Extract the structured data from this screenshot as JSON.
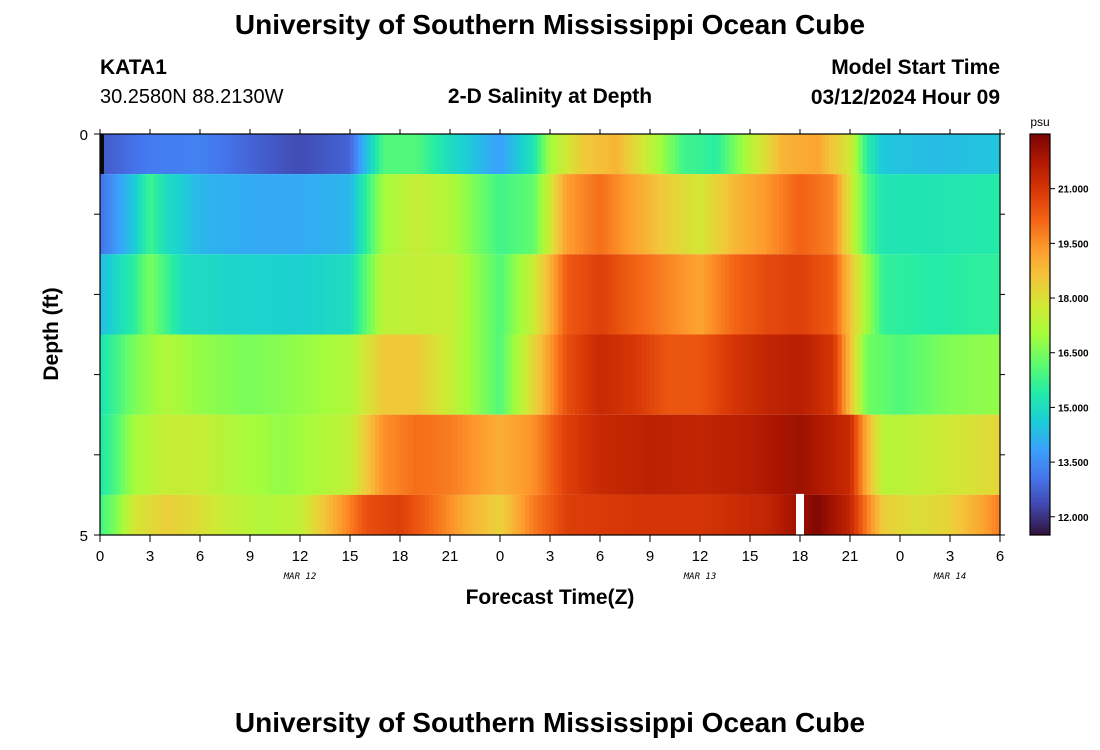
{
  "header": {
    "title_top": "University of Southern Mississippi Ocean Cube",
    "title_bottom": "University of Southern Mississippi Ocean Cube",
    "station_id": "KATA1",
    "station_coords": "30.2580N  88.2130W",
    "chart_title": "2-D Salinity at Depth",
    "model_label": "Model Start Time",
    "model_time": "03/12/2024 Hour 09"
  },
  "chart_data": {
    "type": "heatmap",
    "title": "2-D Salinity at Depth",
    "xlabel": "Forecast Time(Z)",
    "ylabel": "Depth (ft)",
    "y_tick_labels": [
      "0",
      "5"
    ],
    "ylim": [
      0,
      5
    ],
    "x_hours_range": [
      0,
      54
    ],
    "x_tick_labels": [
      "0",
      "3",
      "6",
      "9",
      "12",
      "15",
      "18",
      "21",
      "0",
      "3",
      "6",
      "9",
      "12",
      "15",
      "18",
      "21",
      "0",
      "3",
      "6"
    ],
    "date_labels": [
      {
        "label": "MAR 12",
        "hour": 12
      },
      {
        "label": "MAR 13",
        "hour": 36
      },
      {
        "label": "MAR 14",
        "hour": 51
      }
    ],
    "colorbar": {
      "unit": "psu",
      "range": [
        11.5,
        22.5
      ],
      "tick_values": [
        12.0,
        13.5,
        15.0,
        16.5,
        18.0,
        19.5,
        21.0
      ],
      "tick_labels": [
        "12.000",
        "13.500",
        "15.000",
        "16.500",
        "18.000",
        "19.500",
        "21.000"
      ]
    },
    "depth_bands": [
      {
        "depth_range": [
          0,
          0.5
        ],
        "keyframes": [
          [
            0,
            12.6
          ],
          [
            3,
            13.2
          ],
          [
            6,
            13.3
          ],
          [
            9,
            12.8
          ],
          [
            12,
            12.4
          ],
          [
            15,
            12.8
          ],
          [
            17,
            16.0
          ],
          [
            19,
            16.0
          ],
          [
            21,
            15.0
          ],
          [
            24,
            13.8
          ],
          [
            26,
            15.2
          ],
          [
            27,
            17.0
          ],
          [
            29,
            18.5
          ],
          [
            31,
            18.9
          ],
          [
            33,
            17.5
          ],
          [
            35,
            15.8
          ],
          [
            37,
            15.5
          ],
          [
            39,
            17.3
          ],
          [
            41,
            18.9
          ],
          [
            43,
            19.2
          ],
          [
            45,
            17.8
          ],
          [
            46,
            15.5
          ],
          [
            47,
            14.5
          ],
          [
            50,
            14.3
          ],
          [
            54,
            14.5
          ]
        ]
      },
      {
        "depth_range": [
          0.5,
          1.5
        ],
        "keyframes": [
          [
            0,
            13.0
          ],
          [
            2,
            14.5
          ],
          [
            3,
            15.8
          ],
          [
            4,
            15.0
          ],
          [
            6,
            14.2
          ],
          [
            9,
            14.0
          ],
          [
            12,
            14.0
          ],
          [
            15,
            14.2
          ],
          [
            17,
            17.0
          ],
          [
            19,
            17.6
          ],
          [
            21,
            17.2
          ],
          [
            24,
            15.8
          ],
          [
            26,
            16.2
          ],
          [
            28,
            19.3
          ],
          [
            30,
            20.0
          ],
          [
            32,
            19.2
          ],
          [
            34,
            18.4
          ],
          [
            36,
            17.8
          ],
          [
            38,
            18.8
          ],
          [
            40,
            19.4
          ],
          [
            42,
            20.2
          ],
          [
            44,
            19.7
          ],
          [
            46,
            16.0
          ],
          [
            47,
            15.2
          ],
          [
            50,
            15.2
          ],
          [
            54,
            15.4
          ]
        ]
      },
      {
        "depth_range": [
          1.5,
          2.5
        ],
        "keyframes": [
          [
            0,
            14.3
          ],
          [
            2,
            15.5
          ],
          [
            3,
            16.5
          ],
          [
            5,
            15.0
          ],
          [
            8,
            14.8
          ],
          [
            12,
            14.7
          ],
          [
            15,
            15.0
          ],
          [
            17,
            17.4
          ],
          [
            21,
            17.6
          ],
          [
            24,
            16.0
          ],
          [
            26,
            17.6
          ],
          [
            28,
            20.3
          ],
          [
            30,
            20.8
          ],
          [
            32,
            20.2
          ],
          [
            36,
            19.2
          ],
          [
            38,
            20.1
          ],
          [
            40,
            20.6
          ],
          [
            42,
            20.8
          ],
          [
            44,
            20.3
          ],
          [
            46,
            17.0
          ],
          [
            47,
            15.6
          ],
          [
            50,
            15.4
          ],
          [
            54,
            15.6
          ]
        ]
      },
      {
        "depth_range": [
          2.5,
          3.5
        ],
        "keyframes": [
          [
            0,
            15.2
          ],
          [
            1,
            15.8
          ],
          [
            2,
            16.5
          ],
          [
            4,
            17.2
          ],
          [
            6,
            16.8
          ],
          [
            9,
            16.5
          ],
          [
            12,
            16.8
          ],
          [
            15,
            17.2
          ],
          [
            17,
            18.5
          ],
          [
            19,
            18.5
          ],
          [
            21,
            17.6
          ],
          [
            24,
            16.0
          ],
          [
            26,
            18.2
          ],
          [
            28,
            20.5
          ],
          [
            30,
            21.3
          ],
          [
            32,
            21.0
          ],
          [
            34,
            20.4
          ],
          [
            36,
            20.4
          ],
          [
            38,
            21.0
          ],
          [
            40,
            21.4
          ],
          [
            42,
            21.6
          ],
          [
            44,
            21.0
          ],
          [
            46,
            16.4
          ],
          [
            48,
            16.0
          ],
          [
            51,
            16.6
          ],
          [
            54,
            16.8
          ]
        ]
      },
      {
        "depth_range": [
          3.5,
          4.5
        ],
        "keyframes": [
          [
            0,
            15.3
          ],
          [
            1,
            16.0
          ],
          [
            2,
            17.0
          ],
          [
            4,
            17.6
          ],
          [
            6,
            17.6
          ],
          [
            8,
            17.2
          ],
          [
            11,
            16.8
          ],
          [
            15,
            17.5
          ],
          [
            17,
            19.5
          ],
          [
            19,
            20.0
          ],
          [
            21,
            19.8
          ],
          [
            24,
            19.0
          ],
          [
            26,
            19.5
          ],
          [
            28,
            20.8
          ],
          [
            30,
            21.3
          ],
          [
            33,
            21.5
          ],
          [
            36,
            21.4
          ],
          [
            39,
            21.6
          ],
          [
            42,
            22.0
          ],
          [
            45,
            21.3
          ],
          [
            46,
            19.0
          ],
          [
            47,
            17.3
          ],
          [
            50,
            17.6
          ],
          [
            54,
            18.2
          ]
        ]
      },
      {
        "depth_range": [
          4.5,
          5.0
        ],
        "keyframes": [
          [
            0,
            15.8
          ],
          [
            1,
            16.6
          ],
          [
            2,
            17.8
          ],
          [
            4,
            18.4
          ],
          [
            6,
            18.0
          ],
          [
            8,
            17.5
          ],
          [
            10,
            17.2
          ],
          [
            12,
            17.5
          ],
          [
            14,
            19.0
          ],
          [
            16,
            20.5
          ],
          [
            18,
            20.8
          ],
          [
            20,
            20.0
          ],
          [
            22,
            19.0
          ],
          [
            24,
            18.3
          ],
          [
            26,
            19.8
          ],
          [
            28,
            20.8
          ],
          [
            32,
            21.0
          ],
          [
            36,
            21.0
          ],
          [
            40,
            21.4
          ],
          [
            42,
            22.0
          ],
          [
            43,
            22.4
          ],
          [
            45,
            21.4
          ],
          [
            46,
            19.8
          ],
          [
            47,
            18.4
          ],
          [
            49,
            18.0
          ],
          [
            51,
            18.3
          ],
          [
            53,
            19.2
          ],
          [
            54,
            19.8
          ]
        ]
      }
    ],
    "missing_data": [
      {
        "hour": 42,
        "depth_range": [
          4.5,
          5.0
        ]
      }
    ]
  },
  "colors": {
    "colormap": [
      "#30123b",
      "#4145ab",
      "#4675ed",
      "#39a2fc",
      "#1bcfd4",
      "#24eca6",
      "#61fc6c",
      "#a4fc3b",
      "#d1e834",
      "#f3c63a",
      "#fe9b2d",
      "#f36315",
      "#d93806",
      "#b11901",
      "#7a0403"
    ],
    "frame": "#000000",
    "gap": "#ffffff"
  }
}
